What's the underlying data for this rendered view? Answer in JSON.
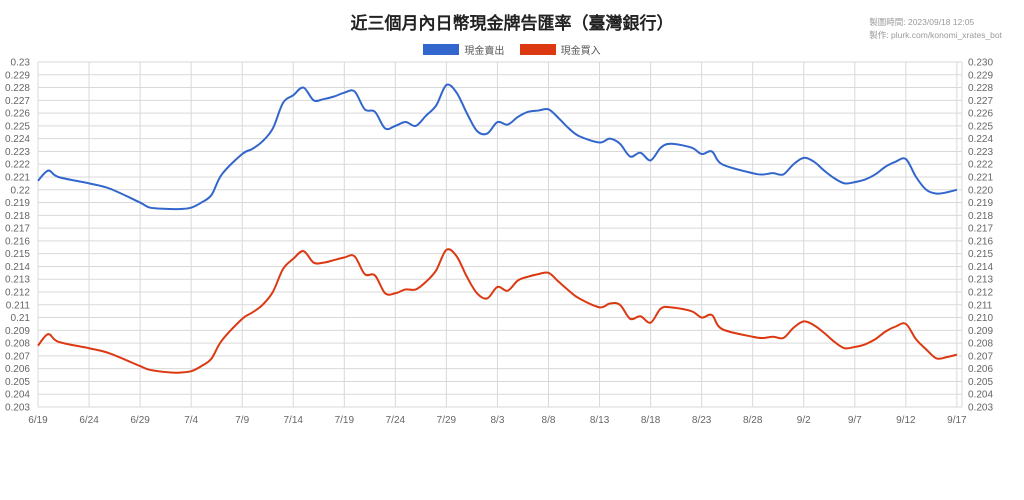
{
  "chart_data": {
    "type": "line",
    "title": "近三個月內日幣現金牌告匯率（臺灣銀行）",
    "meta_line1": "製圖時間: 2023/09/18 12:05",
    "meta_line2": "製作: plurk.com/konomi_xrates_bot",
    "ylim": [
      0.203,
      0.23
    ],
    "yticks": [
      "0.203",
      "0.204",
      "0.205",
      "0.206",
      "0.207",
      "0.208",
      "0.209",
      "0.21",
      "0.211",
      "0.212",
      "0.213",
      "0.214",
      "0.215",
      "0.216",
      "0.217",
      "0.218",
      "0.219",
      "0.22",
      "0.221",
      "0.222",
      "0.223",
      "0.224",
      "0.225",
      "0.226",
      "0.227",
      "0.228",
      "0.229",
      "0.23"
    ],
    "yticks_right": [
      "0.203",
      "0.204",
      "0.205",
      "0.206",
      "0.207",
      "0.208",
      "0.209",
      "0.210",
      "0.211",
      "0.212",
      "0.213",
      "0.214",
      "0.215",
      "0.216",
      "0.217",
      "0.218",
      "0.219",
      "0.220",
      "0.221",
      "0.222",
      "0.223",
      "0.224",
      "0.225",
      "0.226",
      "0.227",
      "0.228",
      "0.229",
      "0.230"
    ],
    "xlabels": [
      "6/19",
      "6/24",
      "6/29",
      "7/4",
      "7/9",
      "7/14",
      "7/19",
      "7/24",
      "7/29",
      "8/3",
      "8/8",
      "8/13",
      "8/18",
      "8/23",
      "8/28",
      "9/2",
      "9/7",
      "9/12",
      "9/17"
    ],
    "xlabel_positions": [
      0,
      5,
      10,
      15,
      20,
      25,
      30,
      35,
      40,
      45,
      50,
      55,
      60,
      65,
      70,
      75,
      80,
      85,
      90
    ],
    "xrange": [
      0,
      90.5
    ],
    "series": [
      {
        "name": "現金賣出",
        "color": "#3366cc",
        "x": [
          0,
          1,
          2,
          5,
          7,
          10,
          11,
          13,
          14,
          15,
          16,
          17,
          18,
          20,
          21,
          22,
          23,
          24,
          25,
          26,
          27,
          28,
          29,
          30,
          31,
          32,
          33,
          34,
          35,
          36,
          37,
          38,
          39,
          40,
          41,
          42,
          43,
          44,
          45,
          46,
          47,
          48,
          49,
          50,
          51,
          52,
          53,
          55,
          56,
          57,
          58,
          59,
          60,
          61,
          62,
          64,
          65,
          66,
          67,
          70,
          71,
          72,
          73,
          74,
          75,
          76,
          77,
          78,
          79,
          80,
          81,
          82,
          83,
          84,
          85,
          86,
          87,
          88,
          89,
          90
        ],
        "y": [
          0.2207,
          0.2215,
          0.221,
          0.2205,
          0.2201,
          0.219,
          0.2186,
          0.2185,
          0.2185,
          0.2186,
          0.219,
          0.2196,
          0.2212,
          0.2228,
          0.2232,
          0.2238,
          0.2248,
          0.2268,
          0.2274,
          0.228,
          0.227,
          0.2271,
          0.2273,
          0.2276,
          0.2277,
          0.2263,
          0.2261,
          0.2248,
          0.225,
          0.2253,
          0.225,
          0.2258,
          0.2266,
          0.2282,
          0.2276,
          0.226,
          0.2246,
          0.2244,
          0.2253,
          0.2251,
          0.2257,
          0.2261,
          0.2262,
          0.2263,
          0.2256,
          0.2248,
          0.2242,
          0.2237,
          0.224,
          0.2236,
          0.2226,
          0.2229,
          0.2223,
          0.2233,
          0.2236,
          0.2233,
          0.2228,
          0.223,
          0.222,
          0.2213,
          0.2212,
          0.2213,
          0.2212,
          0.222,
          0.2225,
          0.2222,
          0.2215,
          0.2209,
          0.2205,
          0.2206,
          0.2208,
          0.2212,
          0.2218,
          0.2222,
          0.2224,
          0.221,
          0.22,
          0.2197,
          0.2198,
          0.22
        ]
      },
      {
        "name": "現金買入",
        "color": "#dc3912",
        "x": [
          0,
          1,
          2,
          5,
          7,
          10,
          11,
          13,
          14,
          15,
          16,
          17,
          18,
          20,
          21,
          22,
          23,
          24,
          25,
          26,
          27,
          28,
          29,
          30,
          31,
          32,
          33,
          34,
          35,
          36,
          37,
          38,
          39,
          40,
          41,
          42,
          43,
          44,
          45,
          46,
          47,
          48,
          49,
          50,
          51,
          52,
          53,
          55,
          56,
          57,
          58,
          59,
          60,
          61,
          62,
          64,
          65,
          66,
          67,
          70,
          71,
          72,
          73,
          74,
          75,
          76,
          77,
          78,
          79,
          80,
          81,
          82,
          83,
          84,
          85,
          86,
          87,
          88,
          89,
          90
        ],
        "y": [
          0.2078,
          0.2087,
          0.2081,
          0.2076,
          0.2072,
          0.2062,
          0.2059,
          0.2057,
          0.2057,
          0.2058,
          0.2062,
          0.2068,
          0.2082,
          0.2099,
          0.2104,
          0.211,
          0.212,
          0.2138,
          0.2146,
          0.2152,
          0.2143,
          0.2143,
          0.2145,
          0.2147,
          0.2148,
          0.2134,
          0.2133,
          0.2119,
          0.2119,
          0.2122,
          0.2122,
          0.2128,
          0.2137,
          0.2153,
          0.2148,
          0.2132,
          0.2119,
          0.2115,
          0.2124,
          0.2121,
          0.2129,
          0.2132,
          0.2134,
          0.2135,
          0.2128,
          0.2121,
          0.2115,
          0.2108,
          0.2111,
          0.211,
          0.2099,
          0.2101,
          0.2096,
          0.2107,
          0.2108,
          0.2105,
          0.21,
          0.2102,
          0.2091,
          0.2085,
          0.2084,
          0.2085,
          0.2084,
          0.2092,
          0.2097,
          0.2094,
          0.2088,
          0.2081,
          0.2076,
          0.2077,
          0.2079,
          0.2083,
          0.2089,
          0.2093,
          0.2095,
          0.2083,
          0.2075,
          0.2068,
          0.2069,
          0.2071
        ]
      }
    ]
  }
}
